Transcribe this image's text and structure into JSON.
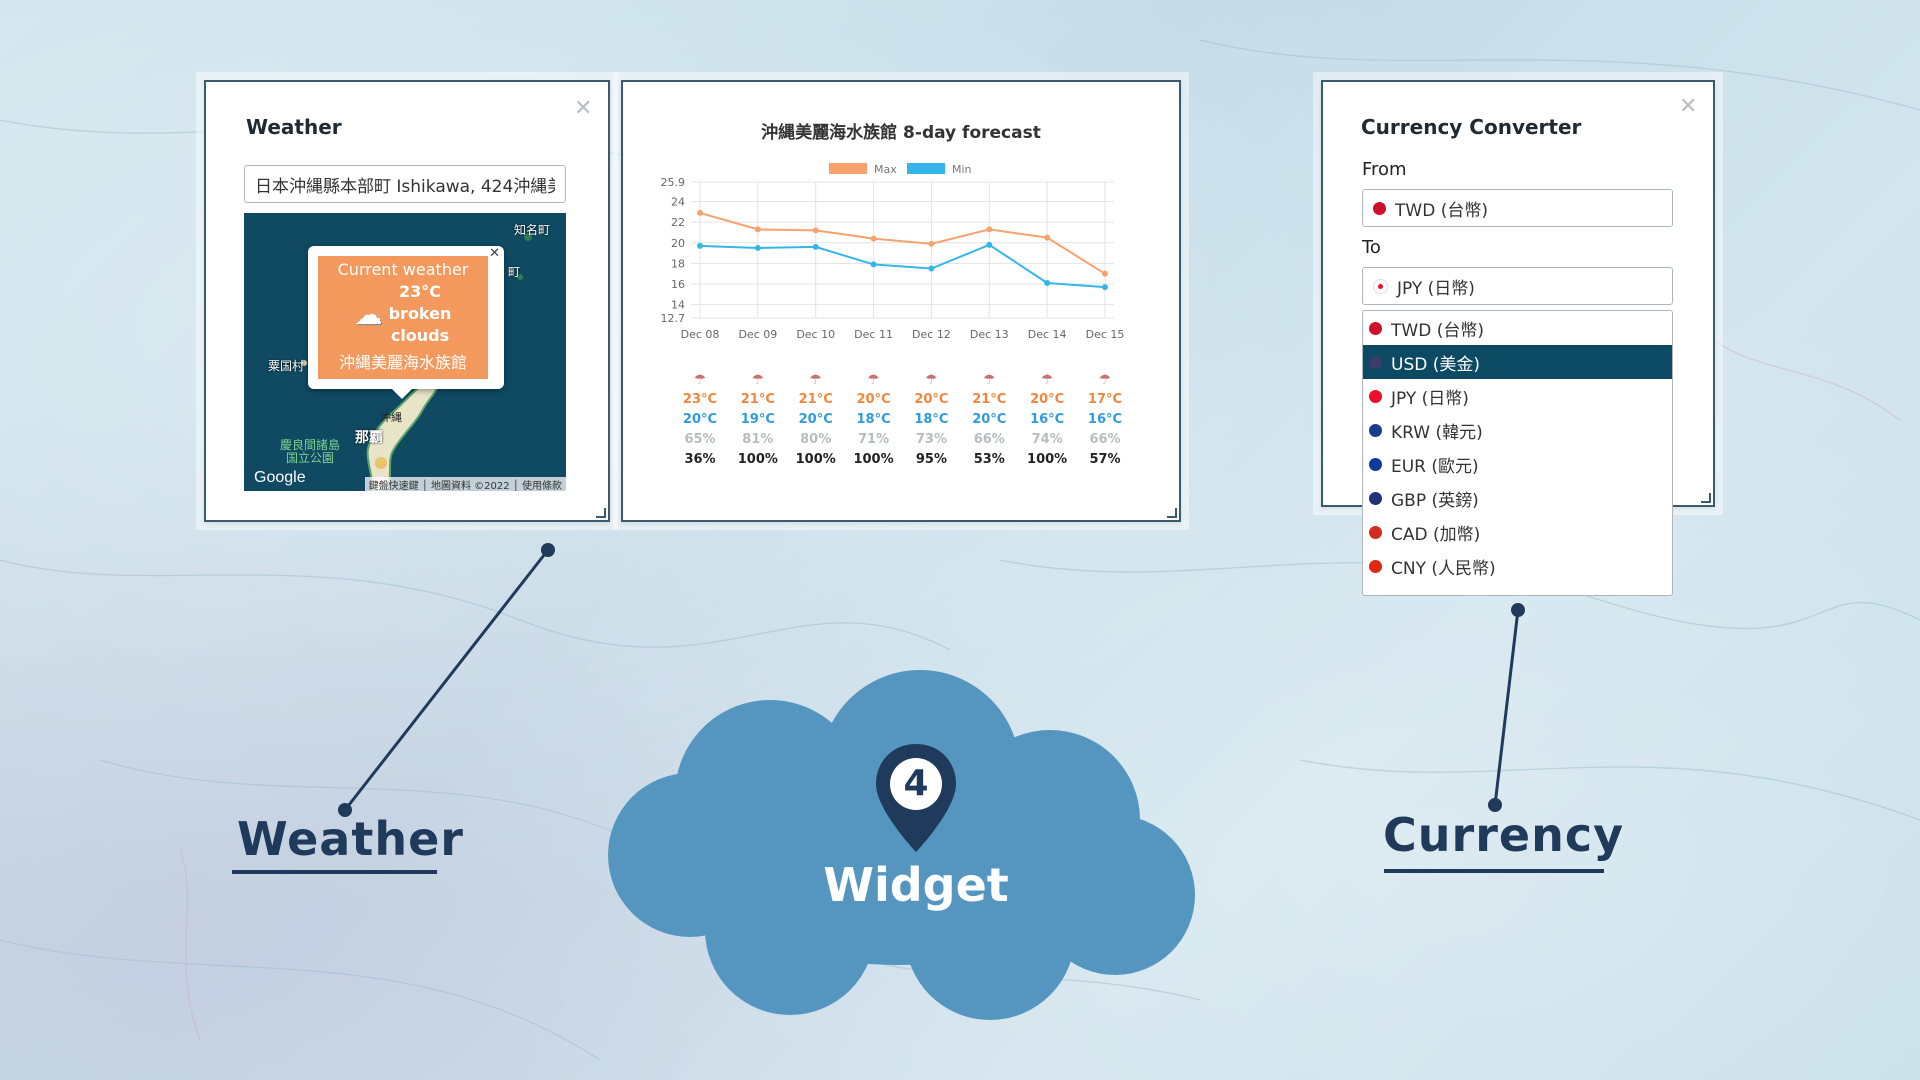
{
  "weather_widget": {
    "title": "Weather",
    "location_value": "日本沖縄縣本部町 Ishikawa, 424沖縄美",
    "popup": {
      "title": "Current weather",
      "temp": "23°C",
      "condition_line1": "broken",
      "condition_line2": "clouds",
      "place": "沖縄美麗海水族館"
    },
    "map_labels": {
      "google": "Google",
      "attribution": "鍵盤快速鍵 │ 地圖資料 ©2022 │ 使用條款",
      "city_naha": "那覇",
      "okinawa": "沖縄",
      "park": "慶良間諸島 国立公園",
      "north_town": "知名町",
      "town2": "町",
      "island": "粟国村"
    }
  },
  "forecast_widget": {
    "title": "沖縄美麗海水族館 8-day forecast",
    "days": [
      {
        "date": "Dec 08",
        "max": "23°C",
        "min": "20°C",
        "humidity": "65%",
        "pop": "36%"
      },
      {
        "date": "Dec 09",
        "max": "21°C",
        "min": "19°C",
        "humidity": "81%",
        "pop": "100%"
      },
      {
        "date": "Dec 10",
        "max": "21°C",
        "min": "20°C",
        "humidity": "80%",
        "pop": "100%"
      },
      {
        "date": "Dec 11",
        "max": "20°C",
        "min": "18°C",
        "humidity": "71%",
        "pop": "100%"
      },
      {
        "date": "Dec 12",
        "max": "20°C",
        "min": "18°C",
        "humidity": "73%",
        "pop": "95%"
      },
      {
        "date": "Dec 13",
        "max": "21°C",
        "min": "20°C",
        "humidity": "66%",
        "pop": "53%"
      },
      {
        "date": "Dec 14",
        "max": "20°C",
        "min": "16°C",
        "humidity": "74%",
        "pop": "100%"
      },
      {
        "date": "Dec 15",
        "max": "17°C",
        "min": "16°C",
        "humidity": "66%",
        "pop": "57%"
      }
    ]
  },
  "chart_data": {
    "type": "line",
    "title": "沖縄美麗海水族館 8-day forecast",
    "categories": [
      "Dec 08",
      "Dec 09",
      "Dec 10",
      "Dec 11",
      "Dec 12",
      "Dec 13",
      "Dec 14",
      "Dec 15"
    ],
    "series": [
      {
        "name": "Max",
        "color": "#f7a26c",
        "values": [
          22.9,
          21.3,
          21.2,
          20.4,
          19.9,
          21.3,
          20.5,
          17.0
        ]
      },
      {
        "name": "Min",
        "color": "#36b5eb",
        "values": [
          19.7,
          19.5,
          19.6,
          17.9,
          17.5,
          19.8,
          16.1,
          15.7
        ]
      }
    ],
    "yticks": [
      "25.9",
      "24",
      "22",
      "20",
      "18",
      "16",
      "14",
      "12.7"
    ],
    "ylim": [
      12.7,
      25.9
    ],
    "grid": true,
    "legend": "top"
  },
  "currency_widget": {
    "title": "Currency Converter",
    "from_label": "From",
    "from_value": "TWD (台幣)",
    "to_label": "To",
    "to_value": "JPY (日幣)",
    "options": [
      {
        "label": "TWD (台幣)",
        "flag_color": "#d0102a",
        "selected": false
      },
      {
        "label": "USD (美金)",
        "flag_color": "#3c3b6e",
        "selected": true
      },
      {
        "label": "JPY (日幣)",
        "flag_color": "#e8102a",
        "selected": false
      },
      {
        "label": "KRW (韓元)",
        "flag_color": "#1b3c8c",
        "selected": false
      },
      {
        "label": "EUR (歐元)",
        "flag_color": "#0b3a9c",
        "selected": false
      },
      {
        "label": "GBP (英鎊)",
        "flag_color": "#21317a",
        "selected": false
      },
      {
        "label": "CAD (加幣)",
        "flag_color": "#d52b1e",
        "selected": false
      },
      {
        "label": "CNY (人民幣)",
        "flag_color": "#de2910",
        "selected": false
      }
    ]
  },
  "labels": {
    "weather": "Weather",
    "currency": "Currency",
    "widget": "Widget",
    "badge_number": "4"
  }
}
